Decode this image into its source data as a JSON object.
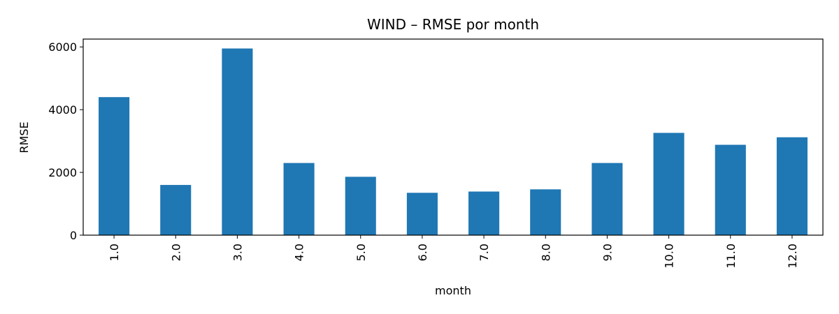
{
  "chart_data": {
    "type": "bar",
    "title": "WIND – RMSE por month",
    "xlabel": "month",
    "ylabel": "RMSE",
    "categories": [
      "1.0",
      "2.0",
      "3.0",
      "4.0",
      "5.0",
      "6.0",
      "7.0",
      "8.0",
      "9.0",
      "10.0",
      "11.0",
      "12.0"
    ],
    "values": [
      4400,
      1600,
      5950,
      2300,
      1860,
      1350,
      1390,
      1460,
      2300,
      3260,
      2880,
      3120
    ],
    "ylim": [
      0,
      6250
    ],
    "yticks": [
      0,
      2000,
      4000,
      6000
    ],
    "bar_color": "#1f77b4",
    "grid": false,
    "legend": "none"
  }
}
